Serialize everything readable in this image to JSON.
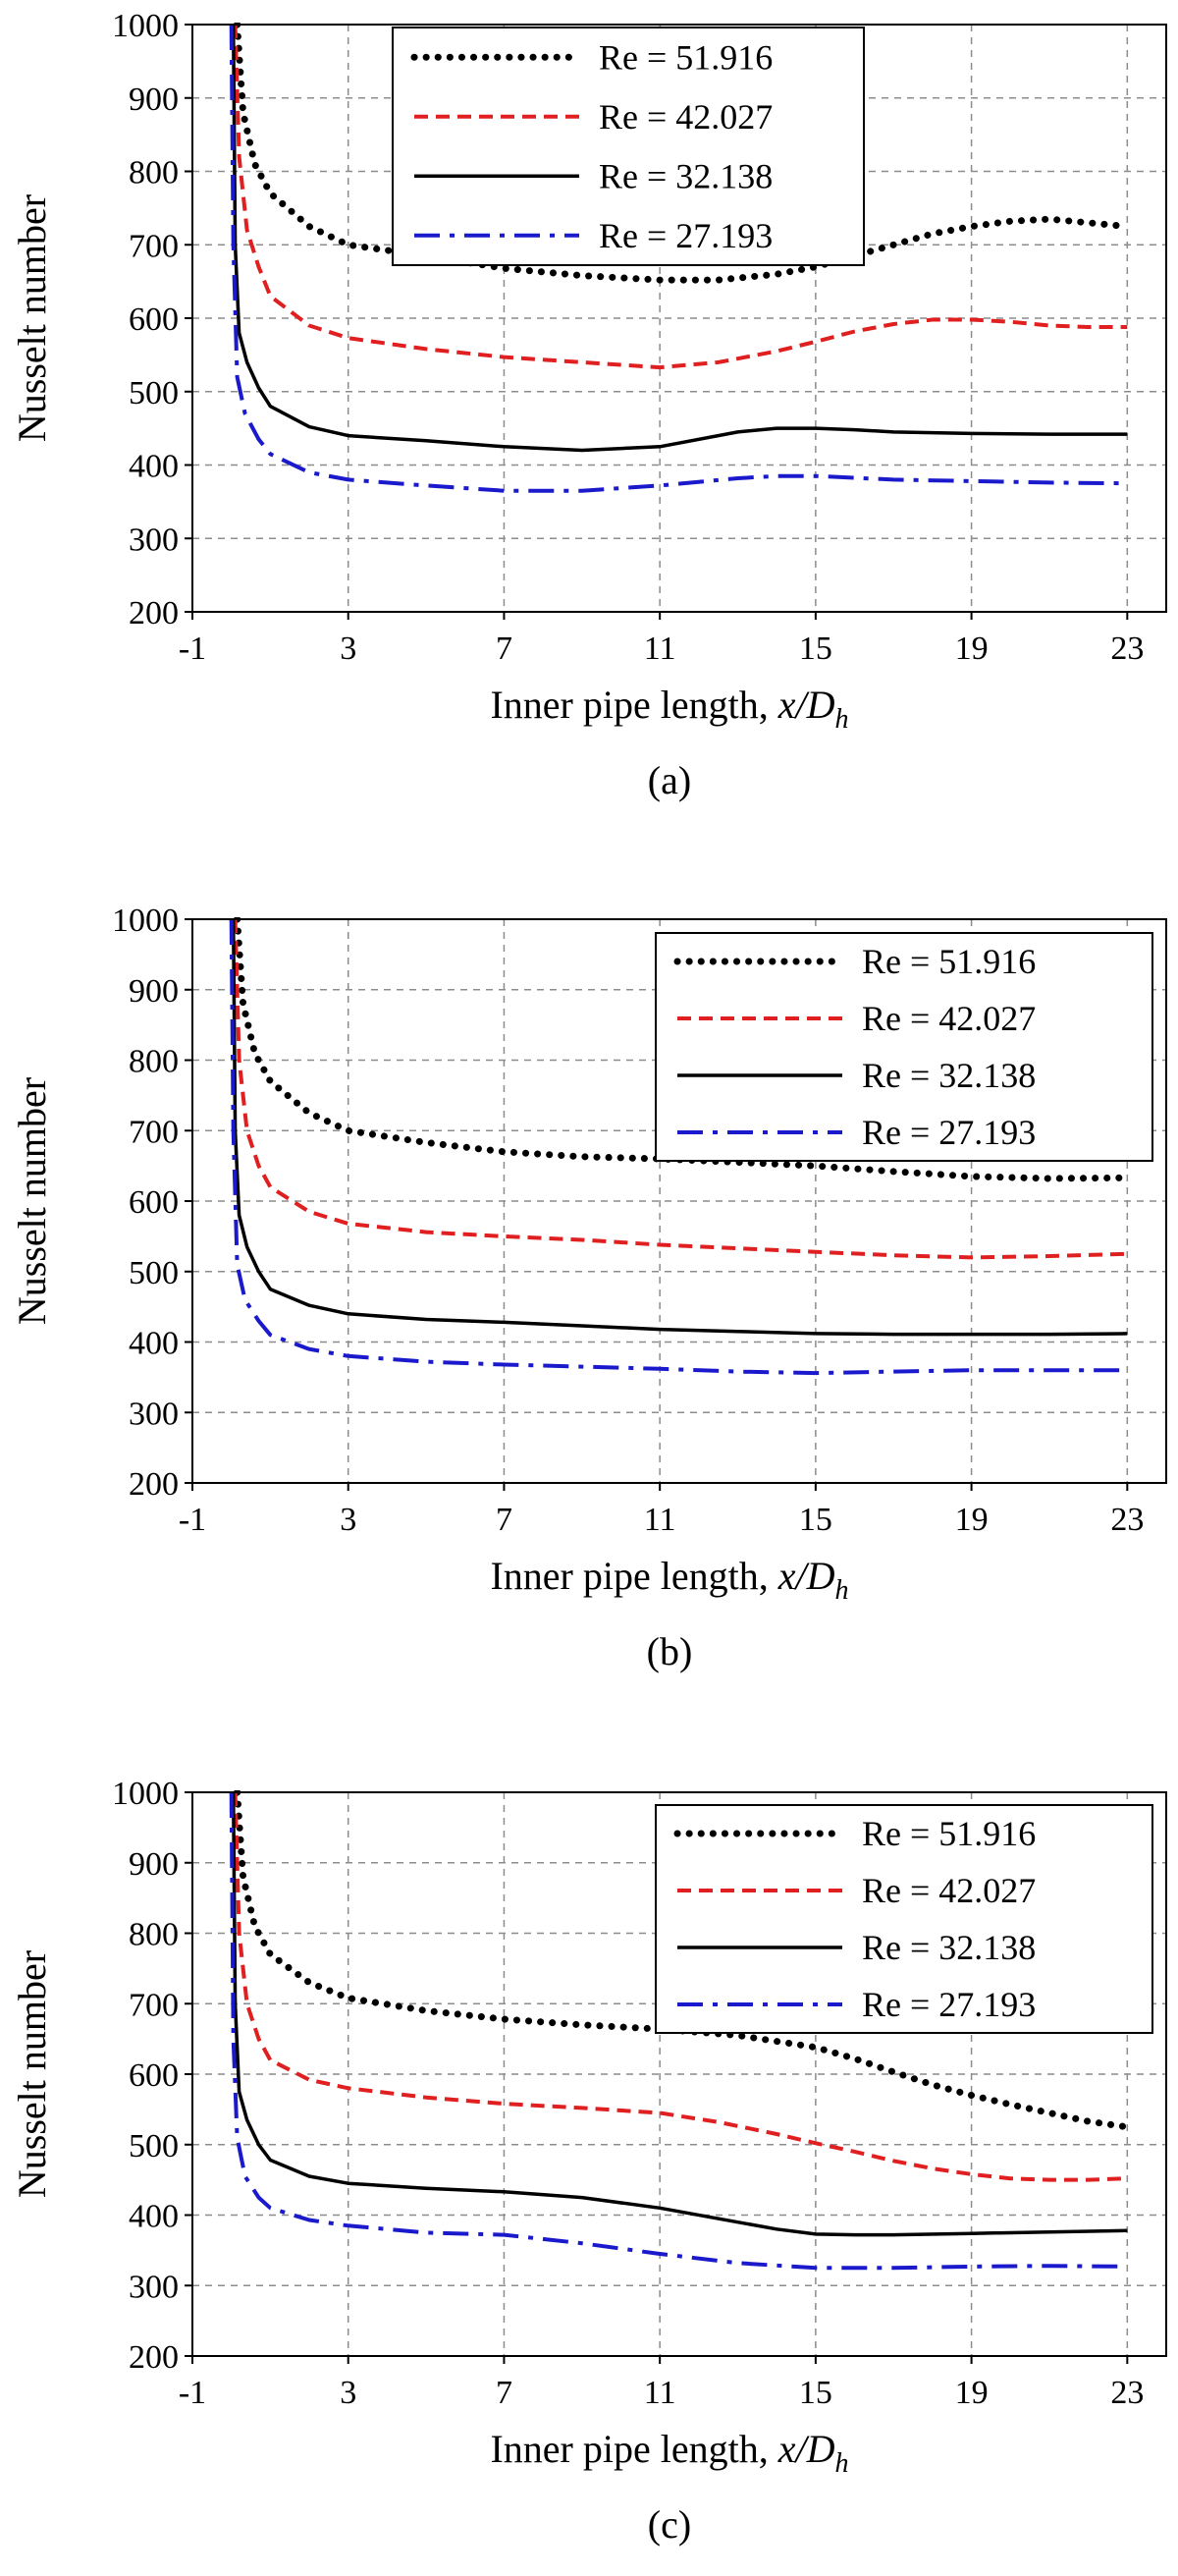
{
  "chart_data": [
    {
      "type": "line",
      "panel_label": "(a)",
      "xlabel": "Inner pipe length, ",
      "xlabel_italic": "x/D",
      "xlabel_sub": "h",
      "ylabel": "Nusselt number",
      "xlim": [
        -1,
        24
      ],
      "ylim": [
        200,
        1000
      ],
      "xticks": [
        -1,
        3,
        7,
        11,
        15,
        19,
        23
      ],
      "yticks": [
        200,
        300,
        400,
        500,
        600,
        700,
        800,
        900,
        1000
      ],
      "grid": true,
      "legend_position": "top-center",
      "series": [
        {
          "name": "Re = 51.916",
          "style": "dotted",
          "color": "#000000",
          "x": [
            0.15,
            0.3,
            0.6,
            1,
            2,
            3,
            5,
            7,
            9,
            11,
            12.5,
            14,
            15,
            16,
            17,
            18,
            19,
            20,
            21,
            22,
            23
          ],
          "y": [
            1000,
            880,
            810,
            770,
            725,
            700,
            685,
            668,
            658,
            652,
            652,
            660,
            670,
            685,
            700,
            715,
            725,
            732,
            735,
            730,
            725
          ]
        },
        {
          "name": "Re = 42.027",
          "style": "dashed",
          "color": "#e02020",
          "x": [
            0.1,
            0.2,
            0.4,
            0.7,
            1,
            2,
            3,
            5,
            7,
            9,
            11,
            12.5,
            14,
            15,
            16,
            17,
            18,
            19,
            20,
            21,
            22,
            23
          ],
          "y": [
            1000,
            820,
            720,
            670,
            630,
            590,
            573,
            558,
            547,
            540,
            533,
            540,
            555,
            568,
            582,
            592,
            598,
            598,
            595,
            590,
            588,
            588
          ]
        },
        {
          "name": "Re = 32.138",
          "style": "solid",
          "color": "#000000",
          "x": [
            0.05,
            0.1,
            0.2,
            0.4,
            0.7,
            1,
            2,
            3,
            5,
            7,
            9,
            11,
            13,
            14,
            15,
            16,
            17,
            19,
            21,
            23
          ],
          "y": [
            1000,
            700,
            580,
            540,
            505,
            480,
            452,
            440,
            433,
            425,
            420,
            425,
            445,
            450,
            450,
            448,
            445,
            443,
            442,
            442
          ]
        },
        {
          "name": "Re = 27.193",
          "style": "dashdot",
          "color": "#1a1acc",
          "x": [
            0.0,
            0.05,
            0.15,
            0.35,
            0.7,
            1,
            2,
            3,
            5,
            7,
            9,
            11,
            13,
            14,
            15,
            17,
            19,
            21,
            23
          ],
          "y": [
            1000,
            700,
            520,
            470,
            435,
            415,
            390,
            380,
            372,
            365,
            365,
            372,
            382,
            385,
            385,
            380,
            378,
            376,
            375
          ]
        }
      ]
    },
    {
      "type": "line",
      "panel_label": "(b)",
      "xlabel": "Inner pipe length, ",
      "xlabel_italic": "x/D",
      "xlabel_sub": "h",
      "ylabel": "Nusselt number",
      "xlim": [
        -1,
        24
      ],
      "ylim": [
        200,
        1000
      ],
      "xticks": [
        -1,
        3,
        7,
        11,
        15,
        19,
        23
      ],
      "yticks": [
        200,
        300,
        400,
        500,
        600,
        700,
        800,
        900,
        1000
      ],
      "grid": true,
      "legend_position": "top-right",
      "series": [
        {
          "name": "Re = 51.916",
          "style": "dotted",
          "color": "#000000",
          "x": [
            0.15,
            0.3,
            0.6,
            1,
            2,
            3,
            5,
            7,
            9,
            11,
            13,
            15,
            17,
            19,
            21,
            23
          ],
          "y": [
            1000,
            880,
            810,
            770,
            725,
            700,
            683,
            670,
            663,
            660,
            655,
            650,
            642,
            635,
            632,
            633
          ]
        },
        {
          "name": "Re = 42.027",
          "style": "dashed",
          "color": "#e02020",
          "x": [
            0.1,
            0.2,
            0.4,
            0.7,
            1,
            2,
            3,
            5,
            7,
            9,
            11,
            13,
            15,
            17,
            19,
            21,
            23
          ],
          "y": [
            1000,
            800,
            700,
            650,
            620,
            585,
            568,
            556,
            550,
            545,
            538,
            533,
            528,
            523,
            520,
            522,
            525
          ]
        },
        {
          "name": "Re = 32.138",
          "style": "solid",
          "color": "#000000",
          "x": [
            0.05,
            0.1,
            0.2,
            0.4,
            0.7,
            1,
            2,
            3,
            5,
            7,
            9,
            11,
            13,
            15,
            17,
            19,
            21,
            23
          ],
          "y": [
            1000,
            700,
            580,
            535,
            500,
            475,
            452,
            440,
            432,
            428,
            423,
            418,
            415,
            412,
            411,
            411,
            411,
            412
          ]
        },
        {
          "name": "Re = 27.193",
          "style": "dashdot",
          "color": "#1a1acc",
          "x": [
            0.0,
            0.05,
            0.15,
            0.35,
            0.7,
            1,
            2,
            3,
            5,
            7,
            9,
            11,
            13,
            15,
            17,
            19,
            21,
            23
          ],
          "y": [
            1000,
            700,
            510,
            460,
            430,
            410,
            390,
            380,
            372,
            368,
            365,
            362,
            358,
            356,
            358,
            360,
            360,
            360
          ]
        }
      ]
    },
    {
      "type": "line",
      "panel_label": "(c)",
      "xlabel": "Inner pipe length, ",
      "xlabel_italic": "x/D",
      "xlabel_sub": "h",
      "ylabel": "Nusselt number",
      "xlim": [
        -1,
        24
      ],
      "ylim": [
        200,
        1000
      ],
      "xticks": [
        -1,
        3,
        7,
        11,
        15,
        19,
        23
      ],
      "yticks": [
        200,
        300,
        400,
        500,
        600,
        700,
        800,
        900,
        1000
      ],
      "grid": true,
      "legend_position": "top-right",
      "series": [
        {
          "name": "Re = 51.916",
          "style": "dotted",
          "color": "#000000",
          "x": [
            0.15,
            0.3,
            0.6,
            1,
            2,
            3,
            5,
            7,
            9,
            11,
            13,
            15,
            16,
            17,
            18,
            19,
            20,
            21,
            22,
            23
          ],
          "y": [
            1000,
            880,
            810,
            770,
            730,
            708,
            690,
            678,
            670,
            664,
            655,
            638,
            622,
            603,
            585,
            570,
            557,
            545,
            533,
            525
          ]
        },
        {
          "name": "Re = 42.027",
          "style": "dashed",
          "color": "#e02020",
          "x": [
            0.1,
            0.2,
            0.4,
            0.7,
            1,
            2,
            3,
            5,
            7,
            9,
            11,
            12.5,
            14,
            15,
            16,
            17,
            18,
            19,
            20,
            21,
            22,
            23
          ],
          "y": [
            1000,
            800,
            700,
            650,
            620,
            592,
            580,
            567,
            558,
            552,
            545,
            532,
            515,
            502,
            490,
            477,
            466,
            458,
            452,
            450,
            450,
            452
          ]
        },
        {
          "name": "Re = 32.138",
          "style": "solid",
          "color": "#000000",
          "x": [
            0.05,
            0.1,
            0.2,
            0.4,
            0.7,
            1,
            2,
            3,
            5,
            7,
            9,
            11,
            13,
            14,
            15,
            16,
            17,
            19,
            21,
            23
          ],
          "y": [
            1000,
            700,
            575,
            535,
            500,
            478,
            455,
            445,
            438,
            433,
            425,
            410,
            390,
            380,
            373,
            372,
            372,
            374,
            376,
            378
          ]
        },
        {
          "name": "Re = 27.193",
          "style": "dashdot",
          "color": "#1a1acc",
          "x": [
            0.0,
            0.05,
            0.15,
            0.35,
            0.7,
            1,
            2,
            3,
            5,
            7,
            9,
            11,
            13,
            15,
            17,
            19,
            21,
            23
          ],
          "y": [
            1000,
            650,
            510,
            455,
            425,
            410,
            393,
            385,
            375,
            372,
            360,
            345,
            332,
            325,
            325,
            327,
            328,
            327
          ]
        }
      ]
    }
  ]
}
